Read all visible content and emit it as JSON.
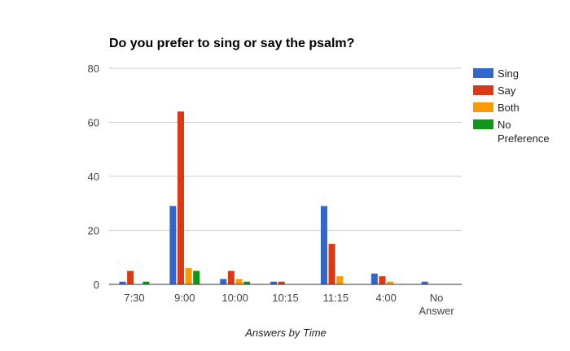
{
  "chart_data": {
    "type": "bar",
    "title": "Do you prefer to sing or say the psalm?",
    "xlabel": "Answers by Time",
    "ylabel": "",
    "categories": [
      "7:30",
      "9:00",
      "10:00",
      "10:15",
      "11:15",
      "4:00",
      "No Answer"
    ],
    "ylim": [
      0,
      80
    ],
    "yticks": [
      0,
      20,
      40,
      60,
      80
    ],
    "grid": true,
    "legend_position": "right",
    "series": [
      {
        "name": "Sing",
        "color": "#3366cc",
        "values": [
          1,
          29,
          2,
          1,
          29,
          4,
          1
        ]
      },
      {
        "name": "Say",
        "color": "#dc3912",
        "values": [
          5,
          64,
          5,
          1,
          15,
          3,
          0
        ]
      },
      {
        "name": "Both",
        "color": "#ff9900",
        "values": [
          0,
          6,
          2,
          0,
          3,
          1,
          0
        ]
      },
      {
        "name": "No Preference",
        "color": "#109618",
        "values": [
          1,
          5,
          1,
          0,
          0,
          0,
          0
        ]
      }
    ]
  }
}
